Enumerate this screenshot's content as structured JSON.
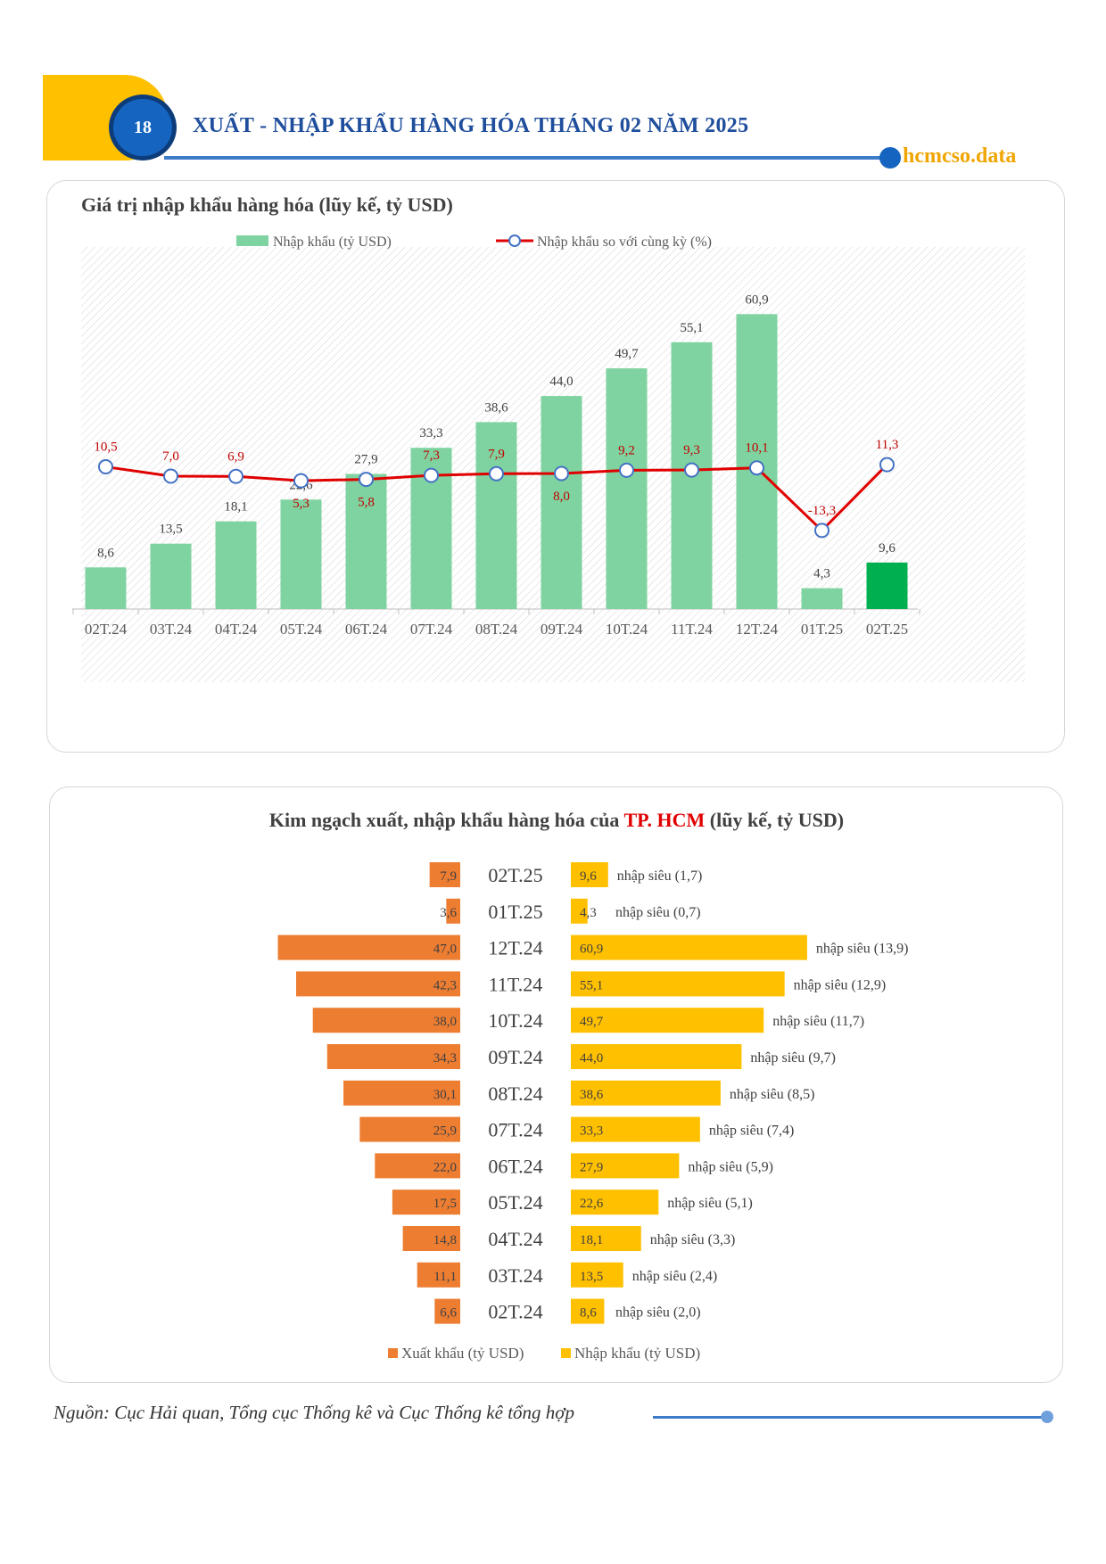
{
  "page_number": "18",
  "header": {
    "title": "XUẤT - NHẬP KHẨU HÀNG HÓA THÁNG 02 NĂM 2025",
    "brand": "hcmcso.data"
  },
  "colors": {
    "header_blue": "#1F4E9C",
    "brand_gold": "#F0A500",
    "import_bar": "#7FD3A0",
    "import_bar_highlight": "#00B050",
    "growth_line": "#E00000",
    "export_bar": "#ED7D31",
    "import_bar_2": "#FFC000"
  },
  "chart_data": [
    {
      "type": "bar",
      "title": "Giá trị nhập khẩu hàng hóa (lũy kế, tỷ USD)",
      "categories": [
        "02T.24",
        "03T.24",
        "04T.24",
        "05T.24",
        "06T.24",
        "07T.24",
        "08T.24",
        "09T.24",
        "10T.24",
        "11T.24",
        "12T.24",
        "01T.25",
        "02T.25"
      ],
      "series": [
        {
          "name": "Nhập khẩu (tỷ USD)",
          "kind": "bar",
          "values": [
            8.6,
            13.5,
            18.1,
            22.6,
            27.9,
            33.3,
            38.6,
            44.0,
            49.7,
            55.1,
            60.9,
            4.3,
            9.6
          ],
          "labels": [
            "8,6",
            "13,5",
            "18,1",
            "22,6",
            "27,9",
            "33,3",
            "38,6",
            "44,0",
            "49,7",
            "55,1",
            "60,9",
            "4,3",
            "9,6"
          ]
        },
        {
          "name": "Nhập khẩu so với cùng kỳ (%)",
          "kind": "line",
          "values": [
            10.5,
            7.0,
            6.9,
            5.3,
            5.8,
            7.3,
            7.9,
            8.0,
            9.2,
            9.3,
            10.1,
            -13.3,
            11.3
          ],
          "labels": [
            "10,5",
            "7,0",
            "6,9",
            "5,3",
            "5,8",
            "7,3",
            "7,9",
            "8,0",
            "9,2",
            "9,3",
            "10,1",
            "-13,3",
            "11,3"
          ]
        }
      ],
      "highlight_category": "02T.25",
      "legend_position": "top",
      "grid": false
    },
    {
      "type": "bar",
      "orientation": "horizontal-butterfly",
      "title": {
        "prefix": "Kim ngạch xuất, nhập khẩu hàng hóa của ",
        "highlight": "TP. HCM",
        "suffix": " (lũy kế, tỷ USD)"
      },
      "categories": [
        "02T.25",
        "01T.25",
        "12T.24",
        "11T.24",
        "10T.24",
        "09T.24",
        "08T.24",
        "07T.24",
        "06T.24",
        "05T.24",
        "04T.24",
        "03T.24",
        "02T.24"
      ],
      "series": [
        {
          "name": "Xuất khẩu (tỷ USD)",
          "values": [
            7.9,
            3.6,
            47.0,
            42.3,
            38.0,
            34.3,
            30.1,
            25.9,
            22.0,
            17.5,
            14.8,
            11.1,
            6.6
          ],
          "labels": [
            "7,9",
            "3,6",
            "47,0",
            "42,3",
            "38,0",
            "34,3",
            "30,1",
            "25,9",
            "22,0",
            "17,5",
            "14,8",
            "11,1",
            "6,6"
          ]
        },
        {
          "name": "Nhập khẩu (tỷ USD)",
          "values": [
            9.6,
            4.3,
            60.9,
            55.1,
            49.7,
            44.0,
            38.6,
            33.3,
            27.9,
            22.6,
            18.1,
            13.5,
            8.6
          ],
          "labels": [
            "9,6",
            "4,3",
            "60,9",
            "55,1",
            "49,7",
            "44,0",
            "38,6",
            "33,3",
            "27,9",
            "22,6",
            "18,1",
            "13,5",
            "8,6"
          ]
        }
      ],
      "annotations": [
        "nhập siêu (1,7)",
        "nhập siêu (0,7)",
        "nhập siêu (13,9)",
        "nhập siêu (12,9)",
        "nhập siêu (11,7)",
        "nhập siêu (9,7)",
        "nhập siêu (8,5)",
        "nhập siêu (7,4)",
        "nhập siêu (5,9)",
        "nhập siêu (5,1)",
        "nhập siêu (3,3)",
        "nhập siêu (2,4)",
        "nhập siêu (2,0)"
      ],
      "legend_position": "bottom"
    }
  ],
  "source": "Nguồn: Cục Hải quan, Tổng cục Thống kê và Cục Thống kê tổng hợp"
}
